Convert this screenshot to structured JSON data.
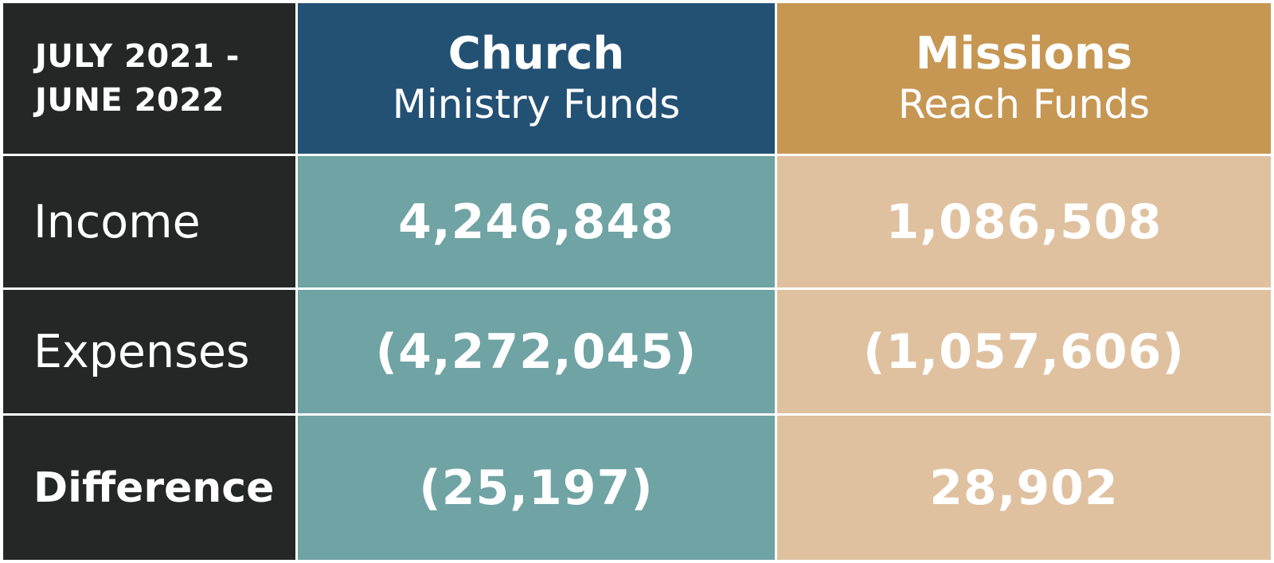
{
  "colors": {
    "label_bg": "#252626",
    "church_header_bg": "#235174",
    "missions_header_bg": "#C69753",
    "church_cell_bg": "#6FA3A4",
    "missions_cell_bg": "#DFC1A0",
    "text": "#FFFFFF"
  },
  "header": {
    "period_line1": "JULY 2021 -",
    "period_line2": "JUNE 2022",
    "church_title": "Church",
    "church_subtitle": "Ministry Funds",
    "missions_title": "Missions",
    "missions_subtitle": "Reach Funds"
  },
  "rows": [
    {
      "label": "Income",
      "church": "4,246,848",
      "missions": "1,086,508"
    },
    {
      "label": "Expenses",
      "church": "(4,272,045)",
      "missions": "(1,057,606)"
    },
    {
      "label": "Difference",
      "church": "(25,197)",
      "missions": "28,902"
    }
  ]
}
